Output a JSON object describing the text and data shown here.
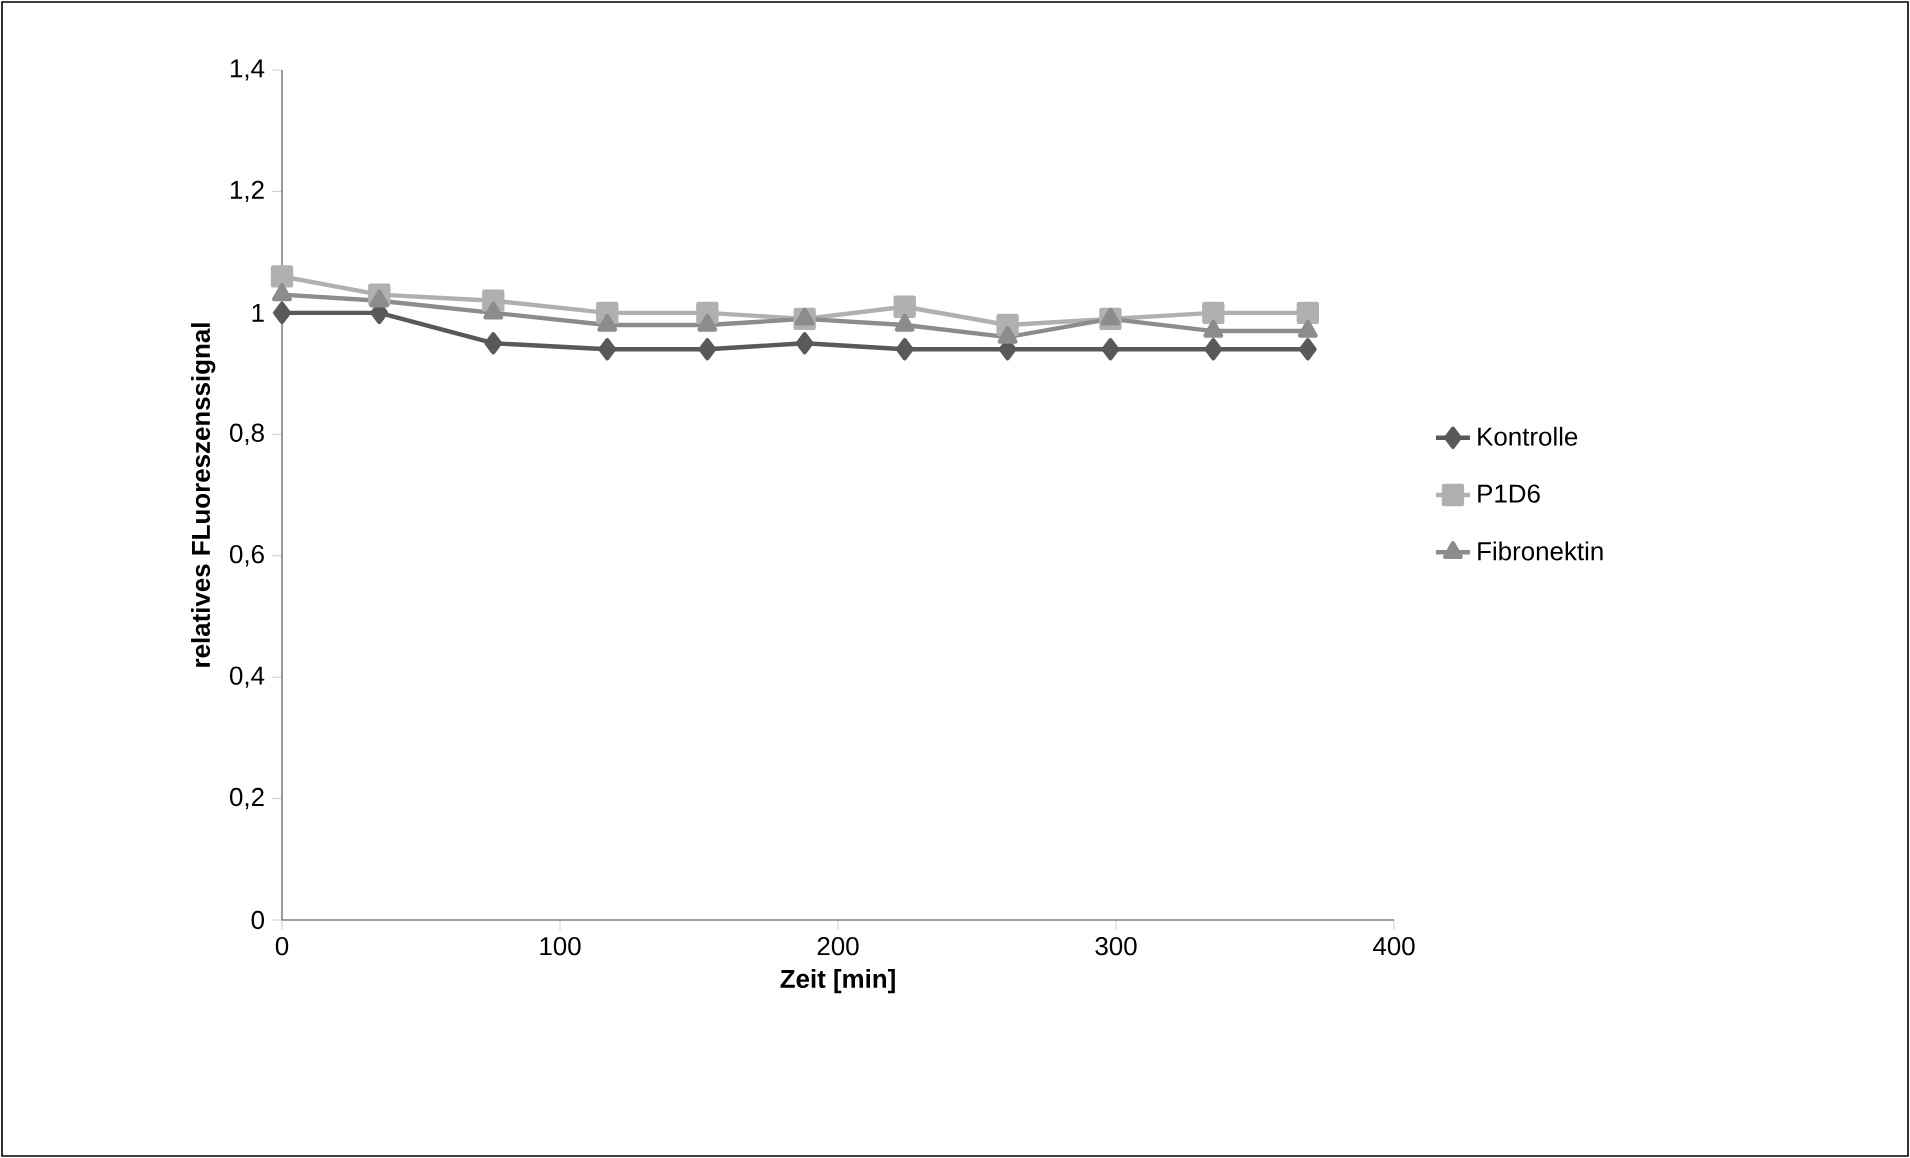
{
  "chart_data": {
    "type": "line",
    "xlabel": "Zeit [min]",
    "ylabel": "relatives FLuoreszenssignal",
    "x": [
      0,
      35,
      76,
      117,
      153,
      188,
      224,
      261,
      298,
      335,
      369
    ],
    "series": [
      {
        "name": "Kontrolle",
        "color": "#595959",
        "marker": "diamond",
        "values": [
          1.0,
          1.0,
          0.95,
          0.94,
          0.94,
          0.95,
          0.94,
          0.94,
          0.94,
          0.94,
          0.94
        ]
      },
      {
        "name": "P1D6",
        "color": "#b0b0b0",
        "marker": "square",
        "values": [
          1.06,
          1.03,
          1.02,
          1.0,
          1.0,
          0.99,
          1.01,
          0.98,
          0.99,
          1.0,
          1.0
        ]
      },
      {
        "name": "Fibronektin",
        "color": "#8c8c8c",
        "marker": "triangle",
        "values": [
          1.03,
          1.02,
          1.0,
          0.98,
          0.98,
          0.99,
          0.98,
          0.96,
          0.99,
          0.97,
          0.97
        ]
      }
    ],
    "xlim": [
      0,
      400
    ],
    "xticks": [
      0,
      100,
      200,
      300,
      400
    ],
    "ylim": [
      0,
      1.4
    ],
    "yticks": [
      {
        "value": 0,
        "label": "0"
      },
      {
        "value": 0.2,
        "label": "0,2"
      },
      {
        "value": 0.4,
        "label": "0,4"
      },
      {
        "value": 0.6,
        "label": "0,6"
      },
      {
        "value": 0.8,
        "label": "0,8"
      },
      {
        "value": 1,
        "label": "1"
      },
      {
        "value": 1.2,
        "label": "1,2"
      },
      {
        "value": 1.4,
        "label": "1,4"
      }
    ],
    "grid": false,
    "legend": "right"
  }
}
